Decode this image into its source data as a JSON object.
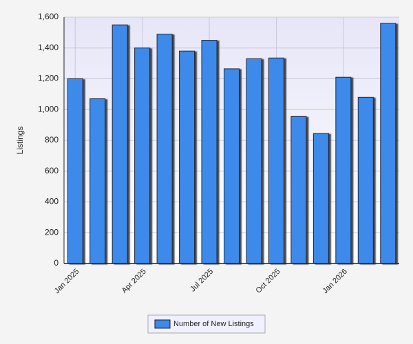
{
  "chart_data": {
    "type": "bar",
    "y_label": "Listings",
    "categories": [
      "Jan 2025",
      null,
      null,
      "Apr 2025",
      null,
      null,
      "Jul 2025",
      null,
      null,
      "Oct 2025",
      null,
      null,
      "Jan 2026",
      null,
      null
    ],
    "series": [
      {
        "name": "Number of New Listings",
        "color": "#3d8aea",
        "values": [
          1200,
          1070,
          1550,
          1400,
          1490,
          1380,
          1450,
          1265,
          1330,
          1335,
          955,
          845,
          1210,
          1080,
          1560
        ]
      }
    ],
    "ylim": [
      0,
      1600
    ],
    "yticks": [
      0,
      200,
      400,
      600,
      800,
      {
        "value": 1000,
        "label": "1,000"
      },
      {
        "value": 1200,
        "label": "1,200"
      },
      {
        "value": 1400,
        "label": "1,400"
      },
      {
        "value": 1600,
        "label": "1,600"
      }
    ],
    "grid": true
  }
}
